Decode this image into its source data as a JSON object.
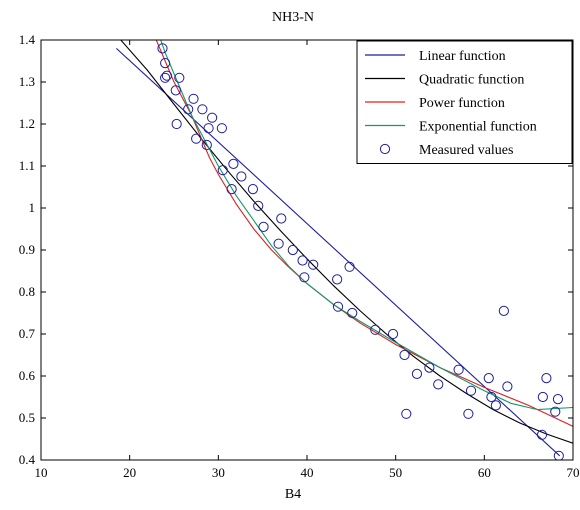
{
  "chart_data": {
    "type": "scatter",
    "title": "NH3-N",
    "xlabel": "B4",
    "ylabel": "",
    "xlim": [
      10,
      70
    ],
    "ylim": [
      0.4,
      1.4
    ],
    "xticks": [
      10,
      20,
      30,
      40,
      50,
      60,
      70
    ],
    "yticks": [
      0.4,
      0.5,
      0.6,
      0.7,
      0.8,
      0.9,
      1.0,
      1.1,
      1.2,
      1.3,
      1.4
    ],
    "xtick_labels": [
      "10",
      "20",
      "30",
      "40",
      "50",
      "60",
      "70"
    ],
    "ytick_labels": [
      "0.4",
      "0.5",
      "0.6",
      "0.7",
      "0.8",
      "0.9",
      "1",
      "1.1",
      "1.2",
      "1.3",
      "1.4"
    ],
    "grid": false,
    "legend_position": "top-right",
    "series": [
      {
        "name": "Linear function",
        "kind": "line",
        "color": "#1f1fa0",
        "x": [
          18.5,
          68.5
        ],
        "y": [
          1.38,
          0.41
        ]
      },
      {
        "name": "Quadratic function",
        "kind": "line",
        "color": "#000000",
        "x": [
          19,
          22,
          25,
          28,
          31,
          34,
          37,
          40,
          43,
          46,
          49,
          52,
          55,
          58,
          61,
          64,
          67,
          70
        ],
        "y": [
          1.4,
          1.328,
          1.247,
          1.167,
          1.09,
          1.016,
          0.946,
          0.879,
          0.815,
          0.755,
          0.699,
          0.647,
          0.6,
          0.558,
          0.52,
          0.488,
          0.462,
          0.44
        ]
      },
      {
        "name": "Power function",
        "kind": "line",
        "color": "#e02020",
        "x": [
          23,
          24,
          25,
          26,
          27,
          28,
          29,
          30,
          32,
          34,
          36,
          38,
          40,
          43,
          46,
          50,
          55,
          60,
          65,
          70
        ],
        "y": [
          1.4,
          1.35,
          1.3,
          1.26,
          1.22,
          1.17,
          1.12,
          1.08,
          1.01,
          0.95,
          0.9,
          0.858,
          0.82,
          0.77,
          0.726,
          0.675,
          0.62,
          0.573,
          0.53,
          0.48
        ]
      },
      {
        "name": "Exponential function",
        "kind": "line",
        "color": "#0f9a6a",
        "x": [
          23.5,
          24,
          25,
          26,
          27,
          28,
          30,
          32,
          34,
          36,
          38,
          40,
          43,
          46,
          50,
          55,
          60,
          63,
          66,
          70
        ],
        "y": [
          1.4,
          1.37,
          1.32,
          1.27,
          1.22,
          1.18,
          1.1,
          1.03,
          0.97,
          0.91,
          0.86,
          0.82,
          0.77,
          0.73,
          0.68,
          0.62,
          0.565,
          0.535,
          0.52,
          0.525
        ]
      },
      {
        "name": "Measured values",
        "kind": "scatter",
        "color": "#1f1fa0",
        "x": [
          23.7,
          24.0,
          24.2,
          24.0,
          25.2,
          25.6,
          25.3,
          26.6,
          27.2,
          27.5,
          28.2,
          28.7,
          28.9,
          29.3,
          30.5,
          30.4,
          31.5,
          31.7,
          32.6,
          33.9,
          34.5,
          35.1,
          36.8,
          37.1,
          38.4,
          39.5,
          39.7,
          40.7,
          43.4,
          43.5,
          44.8,
          45.1,
          47.7,
          49.7,
          51.0,
          51.2,
          52.4,
          53.8,
          54.8,
          57.1,
          58.2,
          58.5,
          60.5,
          60.8,
          61.3,
          62.2,
          62.6,
          66.5,
          66.6,
          67.0,
          68.0,
          68.3,
          68.4
        ],
        "y": [
          1.38,
          1.345,
          1.315,
          1.31,
          1.28,
          1.31,
          1.2,
          1.235,
          1.26,
          1.165,
          1.235,
          1.15,
          1.19,
          1.215,
          1.09,
          1.19,
          1.045,
          1.105,
          1.075,
          1.045,
          1.005,
          0.955,
          0.915,
          0.975,
          0.9,
          0.875,
          0.835,
          0.865,
          0.83,
          0.765,
          0.86,
          0.75,
          0.71,
          0.7,
          0.65,
          0.51,
          0.605,
          0.62,
          0.58,
          0.615,
          0.51,
          0.565,
          0.595,
          0.55,
          0.53,
          0.755,
          0.575,
          0.46,
          0.55,
          0.595,
          0.515,
          0.545,
          0.41
        ]
      }
    ]
  }
}
